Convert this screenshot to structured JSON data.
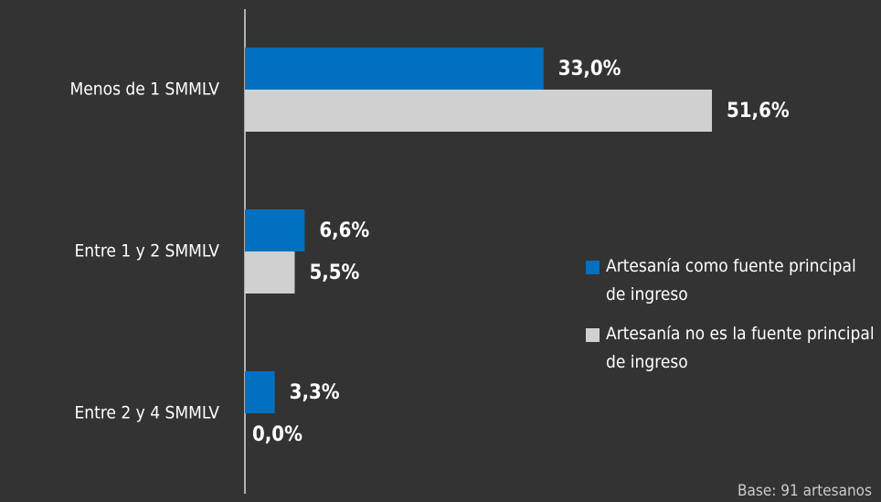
{
  "chart_data": {
    "type": "bar",
    "orientation": "horizontal",
    "categories": [
      "Menos de 1 SMMLV",
      "Entre 1 y 2 SMMLV",
      "Entre 2 y 4 SMMLV"
    ],
    "series": [
      {
        "name": "Artesanía como fuente principal de ingreso",
        "color": "#0070c0",
        "values": [
          33.0,
          6.6,
          3.3
        ],
        "value_labels": [
          "33,0%",
          "6,6%",
          "3,3%"
        ]
      },
      {
        "name": "Artesanía no es la fuente principal de ingreso",
        "color": "#d0d0d0",
        "values": [
          51.6,
          5.5,
          0.0
        ],
        "value_labels": [
          "51,6%",
          "5,5%",
          "0,0%"
        ]
      }
    ],
    "note": "Base: 91 artesanos"
  }
}
